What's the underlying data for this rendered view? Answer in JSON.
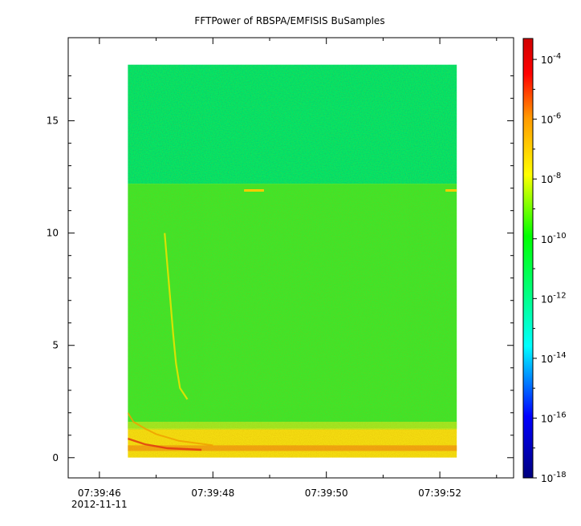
{
  "chart_data": {
    "type": "heatmap",
    "title": "FFTPower of RBSPA/EMFISIS  BuSamples",
    "xlabel": "",
    "ylabel": "",
    "y_ticks": [
      "0",
      "5",
      "10",
      "15"
    ],
    "y_tick_values": [
      0,
      5,
      10,
      15
    ],
    "ylim": [
      -0.9,
      18.7
    ],
    "x_ticks": [
      "07:39:46",
      "07:39:48",
      "07:39:50",
      "07:39:52"
    ],
    "x_tick_values_seconds": [
      46,
      48,
      50,
      52
    ],
    "xlim_seconds": [
      45.45,
      53.3
    ],
    "x_date_label": "2012-11-11",
    "data_extent": {
      "x_seconds": [
        46.5,
        52.3
      ],
      "y": [
        0,
        17.5
      ]
    },
    "colorbar": {
      "scale": "log",
      "tick_bases": [
        "10",
        "10",
        "10",
        "10",
        "10",
        "10",
        "10",
        "10"
      ],
      "tick_exponents": [
        "-4",
        "-6",
        "-8",
        "-10",
        "-12",
        "-14",
        "-16",
        "-18"
      ],
      "tick_log_values": [
        -4,
        -6,
        -8,
        -10,
        -12,
        -14,
        -16,
        -18
      ],
      "range_log": [
        -18,
        -3.3
      ],
      "colormap": [
        "#00007f",
        "#0000ff",
        "#00ffff",
        "#00ff00",
        "#ffff00",
        "#ff7f00",
        "#ff0000",
        "#d00000"
      ]
    },
    "bands": [
      {
        "y": [
          12.2,
          17.5
        ],
        "level_log": -11.4,
        "note_color": "#00ea66"
      },
      {
        "y": [
          1.3,
          12.2
        ],
        "level_log": -10.2,
        "note_color": "#3ee62a"
      },
      {
        "y": [
          0,
          1.3
        ],
        "level_log": -8.6,
        "note_color": "#f4dc10"
      }
    ],
    "features": [
      {
        "type": "whistler",
        "color": "#e8e200"
      },
      {
        "type": "low-frequency-band",
        "color": "#f0a000"
      },
      {
        "type": "tone-segment",
        "y": 11.9,
        "x_seconds": [
          48.55,
          48.9
        ],
        "color": "#ffcc00"
      },
      {
        "type": "tone-segment",
        "y": 11.9,
        "x_seconds": [
          52.1,
          52.3
        ],
        "color": "#ffcc00"
      }
    ]
  }
}
